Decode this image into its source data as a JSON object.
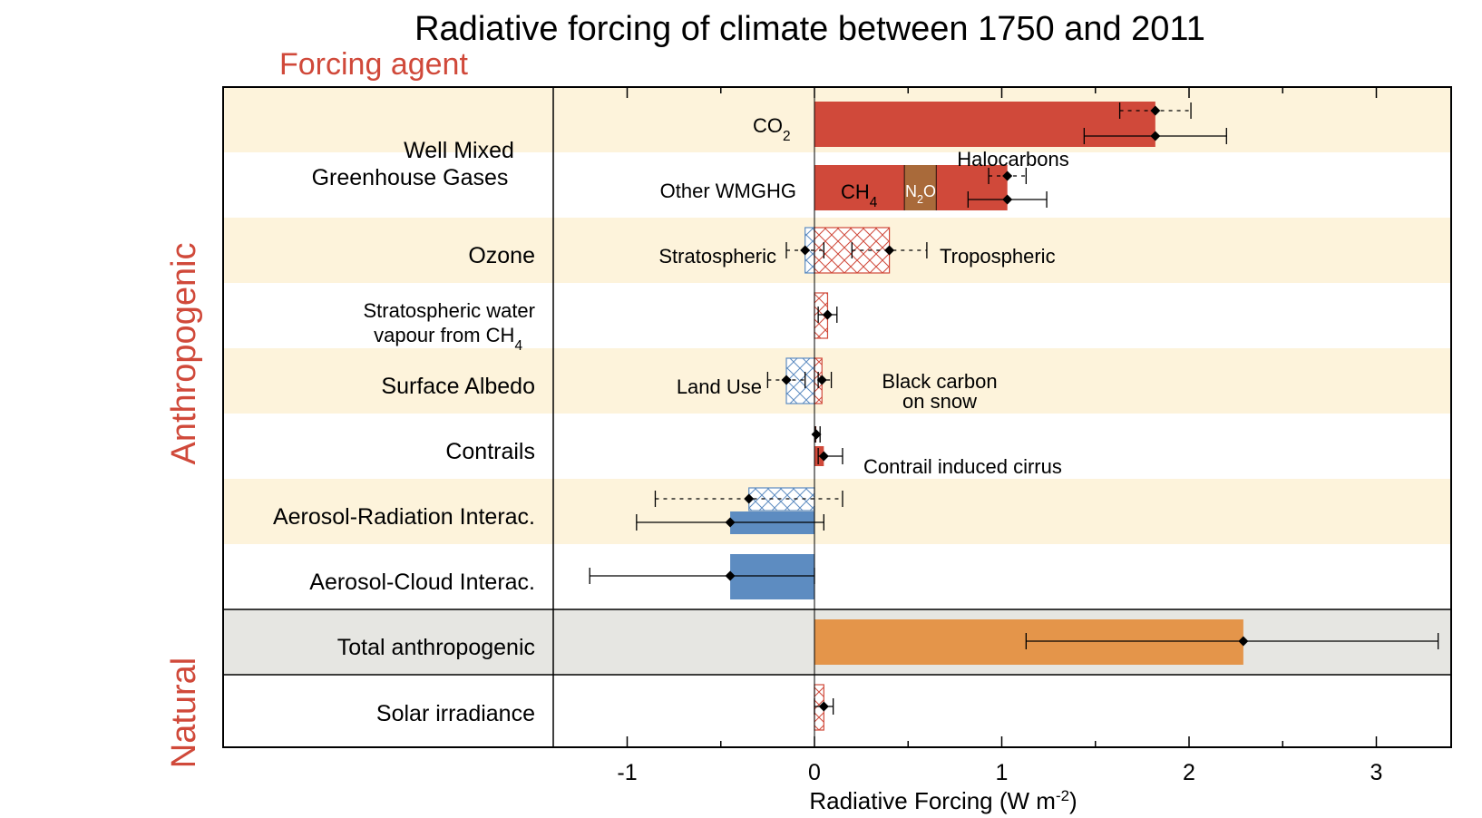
{
  "chart_data": {
    "type": "bar",
    "title": "Radiative forcing of climate between 1750 and 2011",
    "subtitle": "Forcing agent",
    "xlabel": "Radiative Forcing (W m-2)",
    "xlabel_main": "Radiative Forcing (W m",
    "xlabel_sup": "-2",
    "xlabel_close": ")",
    "xlim": [
      -1.4,
      3.4
    ],
    "xticks": [
      -1,
      0,
      1,
      2,
      3
    ],
    "grid": false,
    "groups": [
      {
        "label": "Anthropogenic",
        "rows": [
          0,
          7
        ]
      },
      {
        "label": "Natural",
        "rows": [
          9,
          9
        ]
      }
    ],
    "rows": [
      {
        "label": "Well Mixed\nGreenhouse Gases",
        "shade": true
      },
      {
        "label": "",
        "shade": false
      },
      {
        "label": "Ozone",
        "shade": true
      },
      {
        "label": "Stratospheric water\nvapour from CH4",
        "shade": false
      },
      {
        "label": "Surface Albedo",
        "shade": true
      },
      {
        "label": "Contrails",
        "shade": false
      },
      {
        "label": "Aerosol-Radiation Interac.",
        "shade": true
      },
      {
        "label": "Aerosol-Cloud Interac.",
        "shade": false
      },
      {
        "label": "Total anthropogenic",
        "shade": "grey"
      },
      {
        "label": "Solar irradiance",
        "shade": false
      }
    ],
    "series": [
      {
        "name": "CO2",
        "row": 0,
        "sub": 0,
        "value": 1.82,
        "fill": "solid",
        "color": "#d0493a",
        "emission_value": 1.82,
        "ci_dotted": [
          1.63,
          2.01
        ],
        "ci_solid": [
          1.44,
          2.2
        ]
      },
      {
        "name": "CH4",
        "row": 1,
        "sub": 0,
        "segments": [
          {
            "name": "CH4",
            "from": 0,
            "to": 0.48,
            "color": "#d0493a"
          },
          {
            "name": "N2O",
            "from": 0.48,
            "to": 0.65,
            "color": "#a96a3a"
          },
          {
            "name": "Halocarbons",
            "from": 0.65,
            "to": 1.03,
            "color": "#d0493a"
          }
        ],
        "value": 1.03,
        "ci_dotted": [
          0.93,
          1.13
        ],
        "ci_solid": [
          0.82,
          1.24
        ]
      },
      {
        "name": "Stratospheric",
        "row": 2,
        "value": -0.05,
        "fill": "hatch-blue",
        "ci_dotted": [
          -0.15,
          0.05
        ]
      },
      {
        "name": "Tropospheric",
        "row": 2,
        "value": 0.4,
        "fill": "hatch-red",
        "ci_dotted": [
          0.2,
          0.6
        ]
      },
      {
        "name": "Stratospheric water vapour",
        "row": 3,
        "value": 0.07,
        "fill": "hatch-red",
        "ci_solid": [
          0.02,
          0.12
        ]
      },
      {
        "name": "Land Use",
        "row": 4,
        "value": -0.15,
        "fill": "hatch-blue",
        "ci_dotted": [
          -0.25,
          -0.05
        ]
      },
      {
        "name": "Black carbon on snow",
        "row": 4,
        "value": 0.04,
        "fill": "hatch-red",
        "ci_dotted": [
          0.02,
          0.09
        ]
      },
      {
        "name": "Contrails",
        "row": 5,
        "sub": 0,
        "value": 0.01,
        "fill": "solid",
        "color": "#d0493a",
        "ci_solid": [
          0.005,
          0.03
        ]
      },
      {
        "name": "Contrail induced cirrus",
        "row": 5,
        "sub": 1,
        "value": 0.05,
        "fill": "solid",
        "color": "#d0493a",
        "ci_solid": [
          0.02,
          0.15
        ]
      },
      {
        "name": "Aerosol-Radiation (emission)",
        "row": 6,
        "sub": 0,
        "value": -0.35,
        "fill": "hatch-blue",
        "ci_dotted": [
          -0.85,
          0.15
        ]
      },
      {
        "name": "Aerosol-Radiation (adjusted)",
        "row": 6,
        "sub": 1,
        "value": -0.45,
        "fill": "solid",
        "color": "#5d8cc1",
        "ci_solid": [
          -0.95,
          0.05
        ]
      },
      {
        "name": "Aerosol-Cloud",
        "row": 7,
        "value": -0.45,
        "fill": "solid",
        "color": "#5d8cc1",
        "ci_solid": [
          -1.2,
          0.0
        ]
      },
      {
        "name": "Total anthropogenic",
        "row": 8,
        "value": 2.29,
        "fill": "solid",
        "color": "#e4954a",
        "ci_solid": [
          1.13,
          3.33
        ]
      },
      {
        "name": "Solar irradiance",
        "row": 9,
        "value": 0.05,
        "fill": "hatch-red",
        "ci_solid": [
          0.0,
          0.1
        ]
      }
    ],
    "annotations": [
      {
        "text": "CO",
        "sub": "2",
        "row": 0,
        "place": "co2"
      },
      {
        "text": "Other WMGHG",
        "row": 1,
        "place": "other"
      },
      {
        "text": "Halocarbons",
        "row": 1,
        "place": "halo"
      },
      {
        "text": "CH",
        "sub": "4",
        "row": 1,
        "place": "ch4"
      },
      {
        "text": "N",
        "sub": "2",
        "tail": "O",
        "row": 1,
        "place": "n2o"
      },
      {
        "text": "Stratospheric",
        "row": 2,
        "place": "left"
      },
      {
        "text": "Tropospheric",
        "row": 2,
        "place": "right"
      },
      {
        "text": "Land Use",
        "row": 4,
        "place": "left"
      },
      {
        "text": "Black carbon",
        "row": 4,
        "place": "bc1"
      },
      {
        "text": "on snow",
        "row": 4,
        "place": "bc2"
      },
      {
        "text": "Contrail induced cirrus",
        "row": 5,
        "place": "right"
      }
    ],
    "colors": {
      "shade": "#fdf3db",
      "grey": "#e6e6e2",
      "red": "#d0493a",
      "blue": "#5d8cc1",
      "brown": "#a96a3a",
      "orange": "#e4954a",
      "total_label": "#e4954a"
    }
  },
  "labels": {
    "water_line1": "Stratospheric water",
    "water_line2_main": "vapour from CH",
    "water_line2_sub": "4",
    "wmgg_line1": "Well Mixed",
    "wmgg_line2": "Greenhouse Gases"
  }
}
